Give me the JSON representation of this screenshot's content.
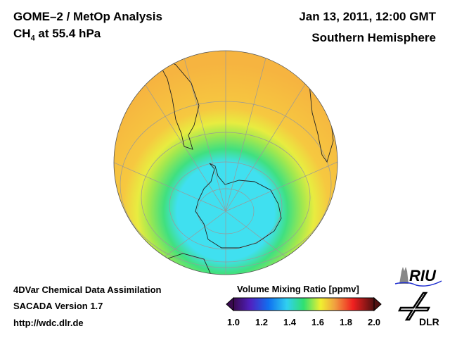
{
  "header": {
    "title_line1": "GOME–2 / MetOp Analysis",
    "title_line2_prefix": "CH",
    "title_line2_sub": "4",
    "title_line2_suffix": " at 55.4 hPa",
    "date": "Jan 13, 2011, 12:00 GMT",
    "region": "Southern Hemisphere"
  },
  "footer": {
    "line1": "4DVar Chemical Data Assimilation",
    "line2": "SACADA Version 1.7",
    "line3": "http://wdc.dlr.de"
  },
  "colorbar": {
    "title": "Volume Mixing Ratio [ppmv]",
    "ticks": [
      "1.0",
      "1.2",
      "1.4",
      "1.6",
      "1.8",
      "2.0"
    ],
    "range": [
      1.0,
      2.0
    ],
    "colors": [
      "#3a0a50",
      "#5020c0",
      "#1070f0",
      "#30d0f0",
      "#30e070",
      "#f0f030",
      "#f0a040",
      "#f02020",
      "#501010"
    ]
  },
  "map": {
    "projection": "orthographic, south pole view",
    "field_colors": {
      "pole": "#40e0f0",
      "ring": "#40e080",
      "mid": "#e8ec40",
      "outer": "#f6b440"
    }
  },
  "logos": {
    "riu": "RIU",
    "dlr": "DLR"
  }
}
